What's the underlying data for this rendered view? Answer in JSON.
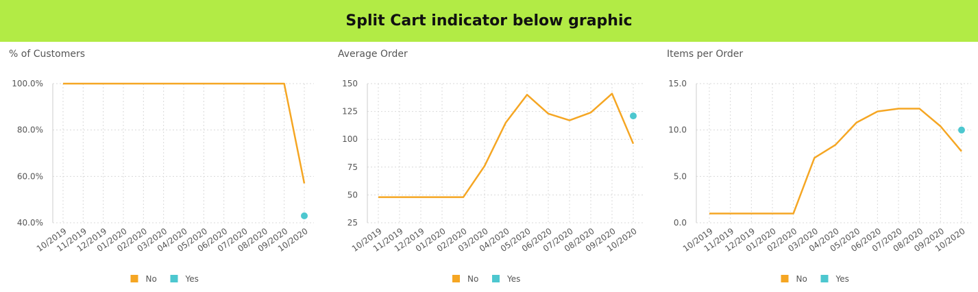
{
  "banner": {
    "title": "Split Cart indicator below graphic",
    "color": "#b2eb45"
  },
  "colors": {
    "no": "#f5a623",
    "yes": "#4dc7cf",
    "grid": "#d9d9d9",
    "axis": "#cccccc",
    "text": "#555555"
  },
  "chart_data": [
    {
      "type": "line",
      "title": "% of Customers",
      "categories": [
        "10/2019",
        "11/2019",
        "12/2019",
        "01/2020",
        "02/2020",
        "03/2020",
        "04/2020",
        "05/2020",
        "06/2020",
        "07/2020",
        "08/2020",
        "09/2020",
        "10/2020"
      ],
      "ylim": [
        40,
        100
      ],
      "yticks": [
        40,
        60,
        80,
        100
      ],
      "ytick_labels": [
        "40.0%",
        "60.0%",
        "80.0%",
        "100.0%"
      ],
      "series": [
        {
          "name": "No",
          "values": [
            100,
            100,
            100,
            100,
            100,
            100,
            100,
            100,
            100,
            100,
            100,
            100,
            57
          ],
          "color": "#f5a623"
        },
        {
          "name": "Yes",
          "values": [
            null,
            null,
            null,
            null,
            null,
            null,
            null,
            null,
            null,
            null,
            null,
            null,
            43
          ],
          "color": "#4dc7cf"
        }
      ],
      "legend": [
        "No",
        "Yes"
      ]
    },
    {
      "type": "line",
      "title": "Average Order",
      "categories": [
        "10/2019",
        "11/2019",
        "12/2019",
        "01/2020",
        "02/2020",
        "03/2020",
        "04/2020",
        "05/2020",
        "06/2020",
        "07/2020",
        "08/2020",
        "09/2020",
        "10/2020"
      ],
      "ylim": [
        25,
        150
      ],
      "yticks": [
        25,
        50,
        75,
        100,
        125,
        150
      ],
      "ytick_labels": [
        "25",
        "50",
        "75",
        "100",
        "125",
        "150"
      ],
      "series": [
        {
          "name": "No",
          "values": [
            48,
            48,
            48,
            48,
            48,
            76,
            115,
            140,
            123,
            117,
            124,
            141,
            96
          ],
          "color": "#f5a623"
        },
        {
          "name": "Yes",
          "values": [
            null,
            null,
            null,
            null,
            null,
            null,
            null,
            null,
            null,
            null,
            null,
            null,
            121
          ],
          "color": "#4dc7cf"
        }
      ],
      "legend": [
        "No",
        "Yes"
      ]
    },
    {
      "type": "line",
      "title": "Items per Order",
      "categories": [
        "10/2019",
        "11/2019",
        "12/2019",
        "01/2020",
        "02/2020",
        "03/2020",
        "04/2020",
        "05/2020",
        "06/2020",
        "07/2020",
        "08/2020",
        "09/2020",
        "10/2020"
      ],
      "ylim": [
        0,
        15
      ],
      "yticks": [
        0,
        5,
        10,
        15
      ],
      "ytick_labels": [
        "0.0",
        "5.0",
        "10.0",
        "15.0"
      ],
      "series": [
        {
          "name": "No",
          "values": [
            1,
            1,
            1,
            1,
            1,
            7,
            8.4,
            10.8,
            12,
            12.3,
            12.3,
            10.4,
            7.7
          ],
          "color": "#f5a623"
        },
        {
          "name": "Yes",
          "values": [
            null,
            null,
            null,
            null,
            null,
            null,
            null,
            null,
            null,
            null,
            null,
            null,
            10
          ],
          "color": "#4dc7cf"
        }
      ],
      "legend": [
        "No",
        "Yes"
      ]
    }
  ]
}
